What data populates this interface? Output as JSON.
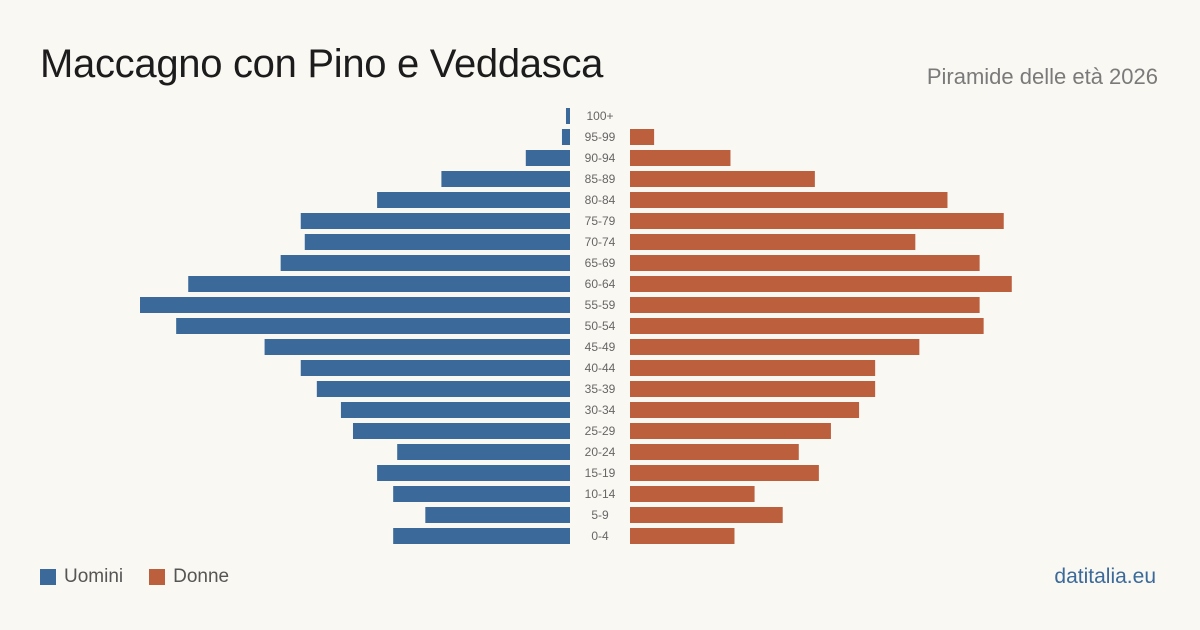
{
  "header": {
    "title": "Maccagno con Pino e Veddasca",
    "subtitle": "Piramide delle età 2026"
  },
  "footer": {
    "brand": "datitalia.eu"
  },
  "colors": {
    "men": "#3b6a9a",
    "women": "#bc5f3d",
    "background": "#faf8f3"
  },
  "chart_data": {
    "type": "bar",
    "orientation": "horizontal-pyramid",
    "categories": [
      "100+",
      "95-99",
      "90-94",
      "85-89",
      "80-84",
      "75-79",
      "70-74",
      "65-69",
      "60-64",
      "55-59",
      "50-54",
      "45-49",
      "40-44",
      "35-39",
      "30-34",
      "25-29",
      "20-24",
      "15-19",
      "10-14",
      "5-9",
      "0-4"
    ],
    "series": [
      {
        "name": "Uomini",
        "values": [
          1,
          2,
          11,
          32,
          48,
          67,
          66,
          72,
          95,
          107,
          98,
          76,
          67,
          63,
          57,
          54,
          43,
          48,
          44,
          36,
          44
        ]
      },
      {
        "name": "Donne",
        "values": [
          0,
          6,
          25,
          46,
          79,
          93,
          71,
          87,
          95,
          87,
          88,
          72,
          61,
          61,
          57,
          50,
          42,
          47,
          31,
          38,
          26
        ]
      }
    ],
    "xlim": [
      0,
      107
    ],
    "grid": false,
    "legend_position": "bottom-left"
  }
}
